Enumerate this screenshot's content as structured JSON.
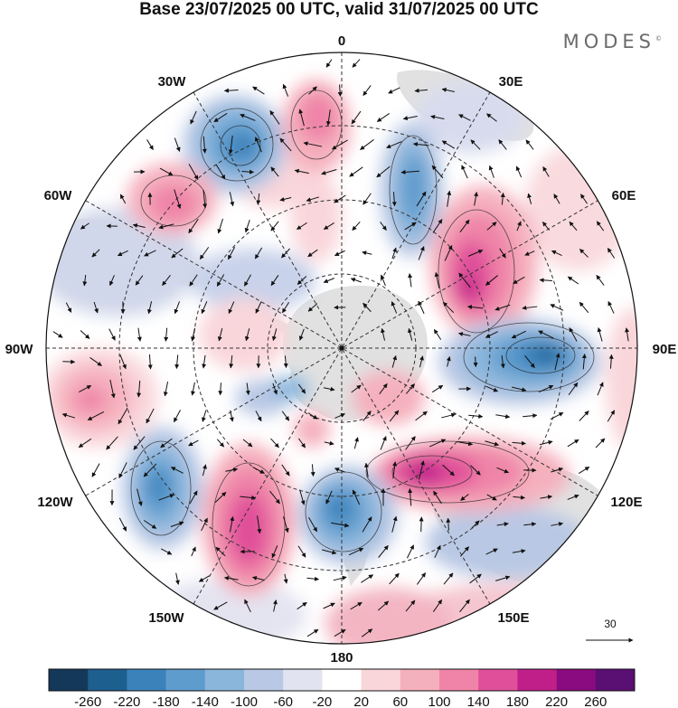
{
  "title": "Base 23/07/2025 00 UTC, valid 31/07/2025 00 UTC",
  "brand": "MODES",
  "brand_mark": "©",
  "projection": "south-polar-stereographic",
  "longitude_labels": {
    "top": "0",
    "top_right": "30E",
    "upper_right": "60E",
    "right": "90E",
    "lower_right": "120E",
    "bottom_right": "150E",
    "bottom": "180",
    "bottom_left": "150W",
    "lower_left": "120W",
    "left": "90W",
    "upper_left": "60W",
    "top_left": "30W"
  },
  "reference_vector": {
    "label": "30"
  },
  "colorbar": {
    "labels": [
      "-260",
      "-220",
      "-180",
      "-140",
      "-100",
      "-60",
      "-20",
      "20",
      "60",
      "100",
      "140",
      "180",
      "220",
      "260"
    ],
    "colors": [
      "#14385a",
      "#1d5f8e",
      "#3b82bb",
      "#5e9cce",
      "#8bb6dc",
      "#b9c8e4",
      "#e2e3f1",
      "#ffffff",
      "#f9d6da",
      "#f5b0bd",
      "#ef84a8",
      "#e0509a",
      "#c01f8a",
      "#8a0a80",
      "#5a0f72"
    ]
  },
  "colors": {
    "land": "#dcdcdc",
    "grid": "#333333",
    "text": "#111111"
  }
}
